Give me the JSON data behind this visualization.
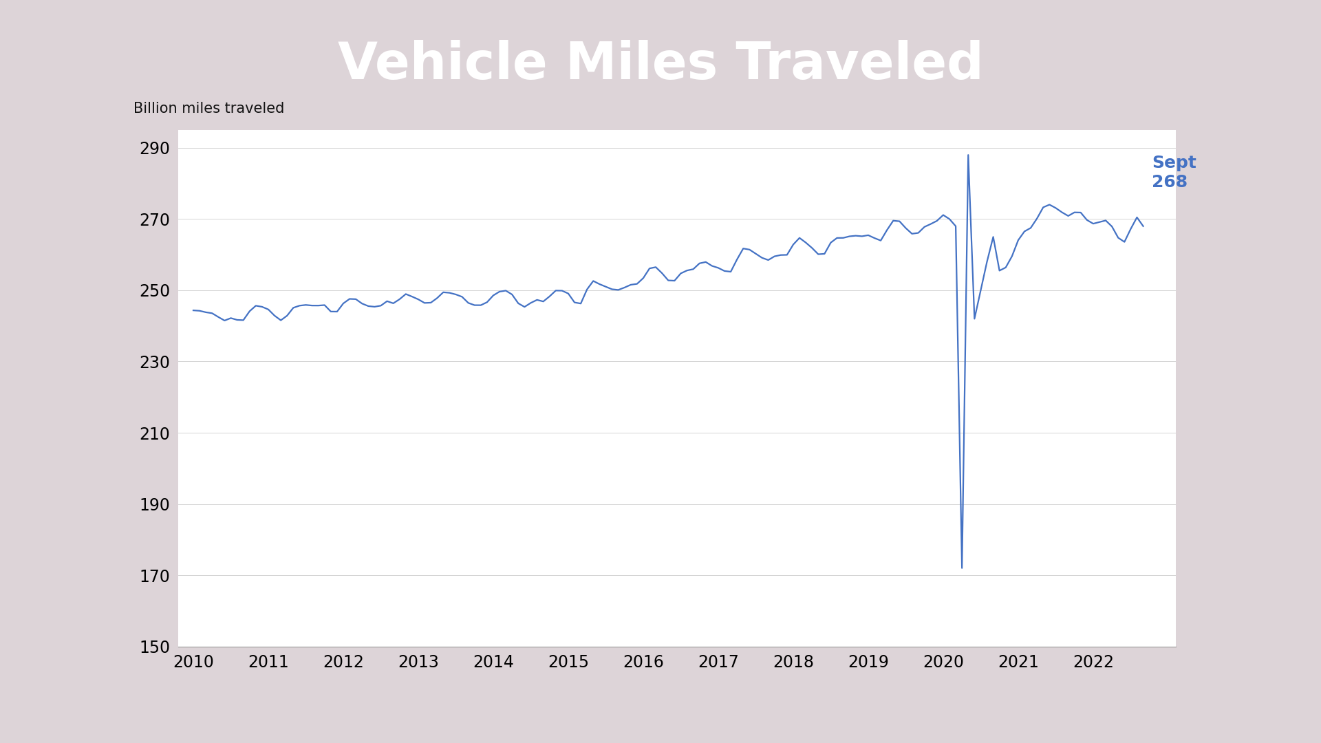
{
  "title": "Vehicle Miles Traveled",
  "ylabel": "Billion miles traveled",
  "title_bg_color": "#2060a0",
  "title_text_color": "#ffffff",
  "line_color": "#4472c4",
  "bg_outer": "#ddd4d8",
  "bg_chart": "#ffffff",
  "annotation_label": "Sept\n268",
  "annotation_color": "#4472c4",
  "ylim": [
    150,
    295
  ],
  "yticks": [
    150,
    170,
    190,
    210,
    230,
    250,
    270,
    290
  ],
  "x_start_year": 2010,
  "x_end_year": 2022
}
